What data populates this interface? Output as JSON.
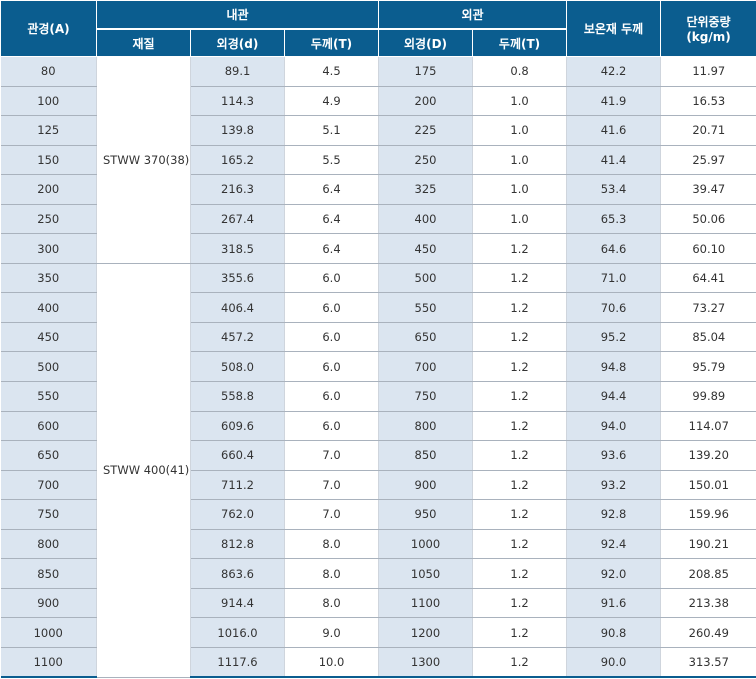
{
  "header": {
    "pipe_size": "관경(A)",
    "inner_pipe": "내관",
    "outer_pipe": "외관",
    "insulation_thickness": "보온재 두께",
    "unit_weight": "단위중량",
    "unit_weight_unit": "(kg/m)",
    "material": "재질",
    "inner_od": "외경(d)",
    "inner_thickness": "두께(T)",
    "outer_od": "외경(D)",
    "outer_thickness": "두께(T)"
  },
  "materials": {
    "group1": "STWW 370(38)",
    "group2": "STWW 400(41)"
  },
  "rows": [
    {
      "size": "80",
      "inner_od": "89.1",
      "inner_t": "4.5",
      "outer_od": "175",
      "outer_t": "0.8",
      "insulation": "42.2",
      "weight": "11.97"
    },
    {
      "size": "100",
      "inner_od": "114.3",
      "inner_t": "4.9",
      "outer_od": "200",
      "outer_t": "1.0",
      "insulation": "41.9",
      "weight": "16.53"
    },
    {
      "size": "125",
      "inner_od": "139.8",
      "inner_t": "5.1",
      "outer_od": "225",
      "outer_t": "1.0",
      "insulation": "41.6",
      "weight": "20.71"
    },
    {
      "size": "150",
      "inner_od": "165.2",
      "inner_t": "5.5",
      "outer_od": "250",
      "outer_t": "1.0",
      "insulation": "41.4",
      "weight": "25.97"
    },
    {
      "size": "200",
      "inner_od": "216.3",
      "inner_t": "6.4",
      "outer_od": "325",
      "outer_t": "1.0",
      "insulation": "53.4",
      "weight": "39.47"
    },
    {
      "size": "250",
      "inner_od": "267.4",
      "inner_t": "6.4",
      "outer_od": "400",
      "outer_t": "1.0",
      "insulation": "65.3",
      "weight": "50.06"
    },
    {
      "size": "300",
      "inner_od": "318.5",
      "inner_t": "6.4",
      "outer_od": "450",
      "outer_t": "1.2",
      "insulation": "64.6",
      "weight": "60.10"
    },
    {
      "size": "350",
      "inner_od": "355.6",
      "inner_t": "6.0",
      "outer_od": "500",
      "outer_t": "1.2",
      "insulation": "71.0",
      "weight": "64.41"
    },
    {
      "size": "400",
      "inner_od": "406.4",
      "inner_t": "6.0",
      "outer_od": "550",
      "outer_t": "1.2",
      "insulation": "70.6",
      "weight": "73.27"
    },
    {
      "size": "450",
      "inner_od": "457.2",
      "inner_t": "6.0",
      "outer_od": "650",
      "outer_t": "1.2",
      "insulation": "95.2",
      "weight": "85.04"
    },
    {
      "size": "500",
      "inner_od": "508.0",
      "inner_t": "6.0",
      "outer_od": "700",
      "outer_t": "1.2",
      "insulation": "94.8",
      "weight": "95.79"
    },
    {
      "size": "550",
      "inner_od": "558.8",
      "inner_t": "6.0",
      "outer_od": "750",
      "outer_t": "1.2",
      "insulation": "94.4",
      "weight": "99.89"
    },
    {
      "size": "600",
      "inner_od": "609.6",
      "inner_t": "6.0",
      "outer_od": "800",
      "outer_t": "1.2",
      "insulation": "94.0",
      "weight": "114.07"
    },
    {
      "size": "650",
      "inner_od": "660.4",
      "inner_t": "7.0",
      "outer_od": "850",
      "outer_t": "1.2",
      "insulation": "93.6",
      "weight": "139.20"
    },
    {
      "size": "700",
      "inner_od": "711.2",
      "inner_t": "7.0",
      "outer_od": "900",
      "outer_t": "1.2",
      "insulation": "93.2",
      "weight": "150.01"
    },
    {
      "size": "750",
      "inner_od": "762.0",
      "inner_t": "7.0",
      "outer_od": "950",
      "outer_t": "1.2",
      "insulation": "92.8",
      "weight": "159.96"
    },
    {
      "size": "800",
      "inner_od": "812.8",
      "inner_t": "8.0",
      "outer_od": "1000",
      "outer_t": "1.2",
      "insulation": "92.4",
      "weight": "190.21"
    },
    {
      "size": "850",
      "inner_od": "863.6",
      "inner_t": "8.0",
      "outer_od": "1050",
      "outer_t": "1.2",
      "insulation": "92.0",
      "weight": "208.85"
    },
    {
      "size": "900",
      "inner_od": "914.4",
      "inner_t": "8.0",
      "outer_od": "1100",
      "outer_t": "1.2",
      "insulation": "91.6",
      "weight": "213.38"
    },
    {
      "size": "1000",
      "inner_od": "1016.0",
      "inner_t": "9.0",
      "outer_od": "1200",
      "outer_t": "1.2",
      "insulation": "90.8",
      "weight": "260.49"
    },
    {
      "size": "1100",
      "inner_od": "1117.6",
      "inner_t": "10.0",
      "outer_od": "1300",
      "outer_t": "1.2",
      "insulation": "90.0",
      "weight": "313.57"
    }
  ]
}
